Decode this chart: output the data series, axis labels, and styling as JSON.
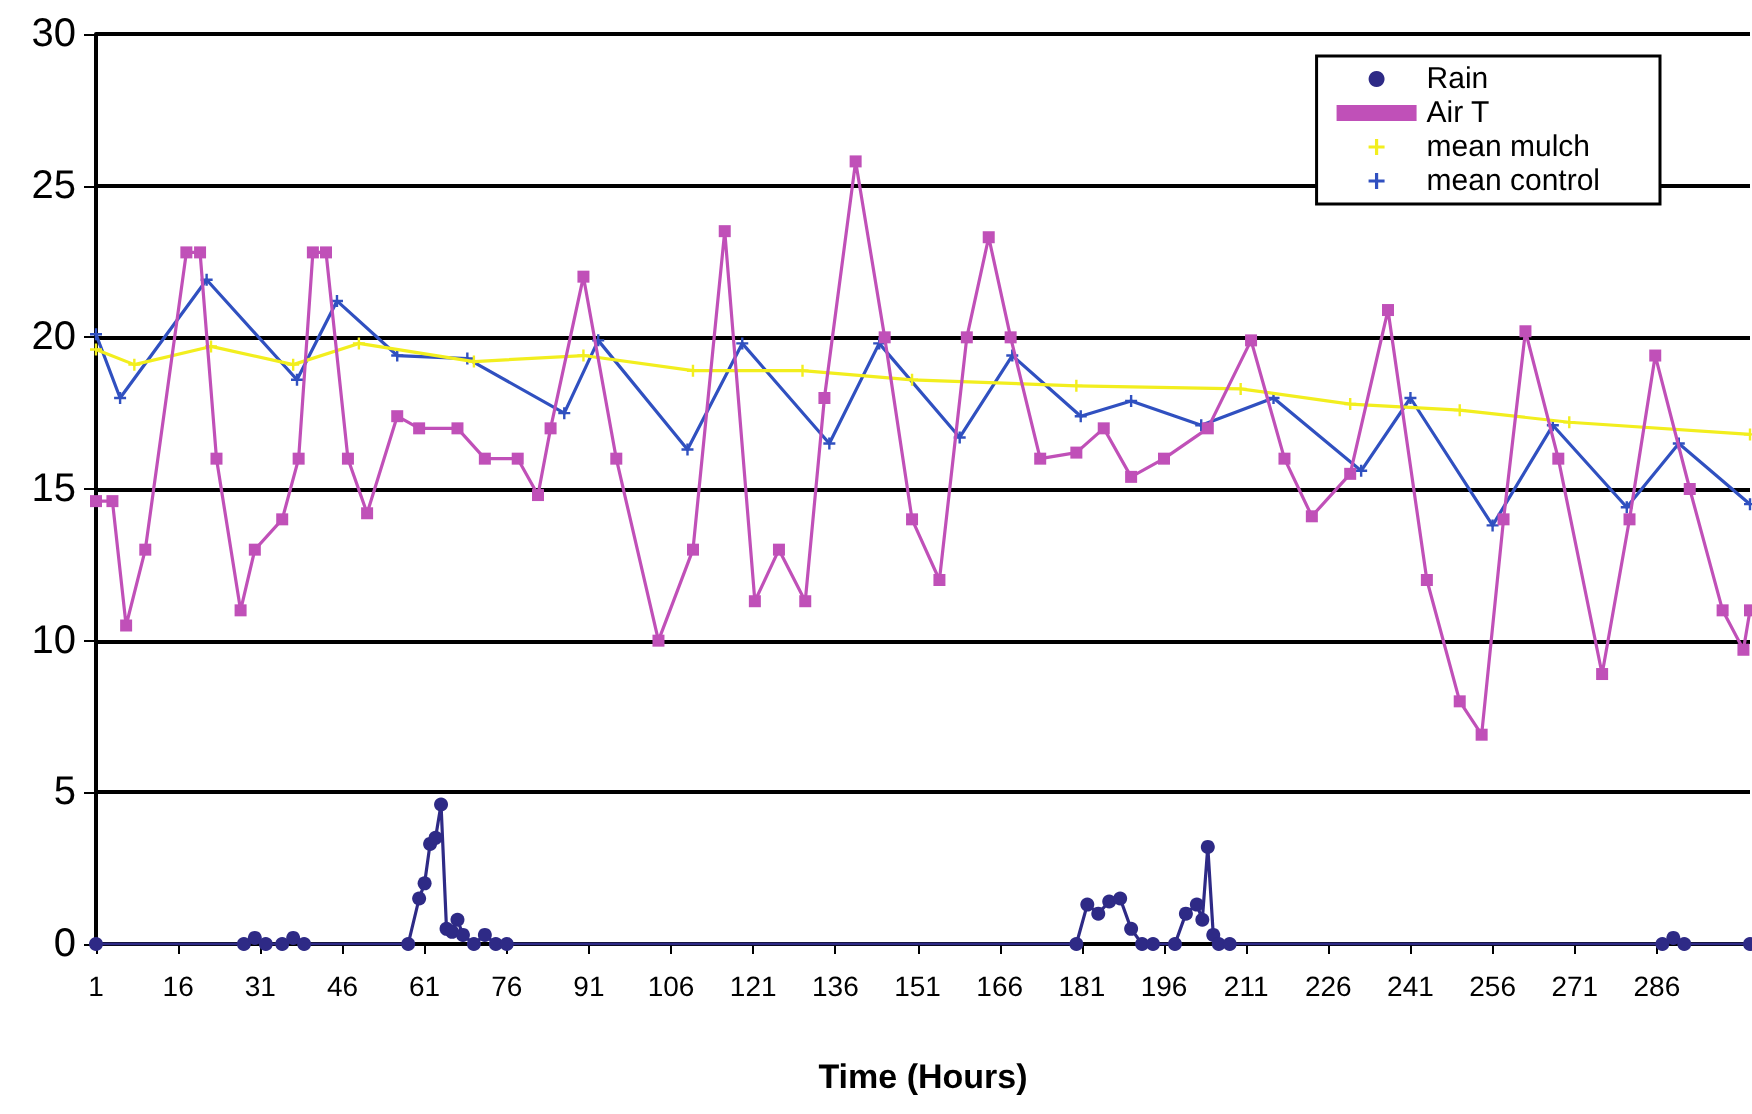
{
  "chart_data": {
    "type": "line",
    "xlabel": "Time (Hours)",
    "xlim": [
      1,
      303
    ],
    "xticks": [
      1,
      16,
      31,
      46,
      61,
      76,
      91,
      106,
      121,
      136,
      151,
      166,
      181,
      196,
      211,
      226,
      241,
      256,
      271,
      286
    ],
    "ylim": [
      0,
      30
    ],
    "yticks": [
      0,
      5,
      10,
      15,
      20,
      25,
      30
    ],
    "grid": "y",
    "legend": "top right",
    "line_style": "solid",
    "series": [
      {
        "name": "Rain",
        "color": "#2e2a86",
        "marker": "circle",
        "x": [
          1,
          28,
          30,
          32,
          35,
          37,
          39,
          58,
          60,
          61,
          62,
          63,
          64,
          65,
          66,
          67,
          68,
          70,
          72,
          74,
          76,
          180,
          182,
          184,
          186,
          188,
          190,
          192,
          194,
          198,
          200,
          202,
          203,
          204,
          205,
          206,
          208,
          287,
          289,
          291,
          303
        ],
        "values": [
          0,
          0,
          0.2,
          0,
          0,
          0.2,
          0,
          0,
          1.5,
          2,
          3.3,
          3.5,
          4.6,
          0.5,
          0.4,
          0.8,
          0.3,
          0,
          0.3,
          0,
          0,
          0,
          1.3,
          1,
          1.4,
          1.5,
          0.5,
          0,
          0,
          0,
          1,
          1.3,
          0.8,
          3.2,
          0.3,
          0,
          0,
          0,
          0.2,
          0,
          0
        ]
      },
      {
        "name": "Air T",
        "color": "#c050b8",
        "marker": "square",
        "x": [
          1,
          4,
          6.5,
          10,
          17.5,
          20,
          23,
          27.4,
          30,
          35,
          38,
          40.6,
          43,
          47,
          50.5,
          56,
          60,
          67,
          72,
          78,
          81.7,
          84,
          90,
          96,
          103.7,
          110,
          115.8,
          121.3,
          125.7,
          130.5,
          134,
          139.7,
          145,
          150,
          155,
          160,
          164,
          168,
          173.4,
          180,
          185,
          190,
          196,
          204,
          211.9,
          218,
          223,
          230,
          236.9,
          244,
          250,
          254,
          258,
          262,
          268,
          276,
          281,
          285.7,
          292,
          298,
          301.8,
          303
        ],
        "values": [
          14.6,
          14.6,
          10.5,
          13,
          22.8,
          22.8,
          16,
          11,
          13,
          14,
          16,
          22.8,
          22.8,
          16,
          14.2,
          17.4,
          17,
          17,
          16,
          16,
          14.8,
          17,
          22,
          16,
          10,
          13,
          23.5,
          11.3,
          13,
          11.3,
          18,
          25.8,
          20,
          14,
          12,
          20,
          23.3,
          20,
          16,
          16.2,
          17,
          15.4,
          16,
          17,
          19.9,
          16,
          14.1,
          15.5,
          20.9,
          12,
          8,
          6.9,
          14,
          20.2,
          16,
          8.9,
          14,
          19.4,
          15,
          11,
          9.7,
          11
        ]
      },
      {
        "name": "mean mulch",
        "color": "#f2ee1e",
        "marker": "cross",
        "x": [
          1,
          8,
          22,
          37,
          49,
          70,
          90,
          110,
          130,
          150,
          180,
          210,
          230,
          250,
          270,
          303
        ],
        "values": [
          19.6,
          19.1,
          19.7,
          19.1,
          19.8,
          19.2,
          19.4,
          18.9,
          18.9,
          18.6,
          18.4,
          18.3,
          17.8,
          17.6,
          17.2,
          16.8
        ]
      },
      {
        "name": "mean control",
        "color": "#3050c0",
        "marker": "cross",
        "x": [
          1,
          5.4,
          21.2,
          37.7,
          45,
          56,
          68.8,
          86.5,
          92.7,
          109,
          119,
          134.9,
          144,
          158.7,
          168.3,
          180.8,
          190,
          202.8,
          216,
          232,
          241,
          256,
          267,
          280.5,
          290,
          303
        ],
        "values": [
          20.1,
          18,
          21.9,
          18.6,
          21.2,
          19.4,
          19.3,
          17.5,
          19.9,
          16.3,
          19.8,
          16.5,
          19.8,
          16.7,
          19.4,
          17.4,
          17.9,
          17.1,
          18,
          15.6,
          18,
          13.8,
          17.1,
          14.4,
          16.5,
          14.5
        ]
      }
    ]
  }
}
